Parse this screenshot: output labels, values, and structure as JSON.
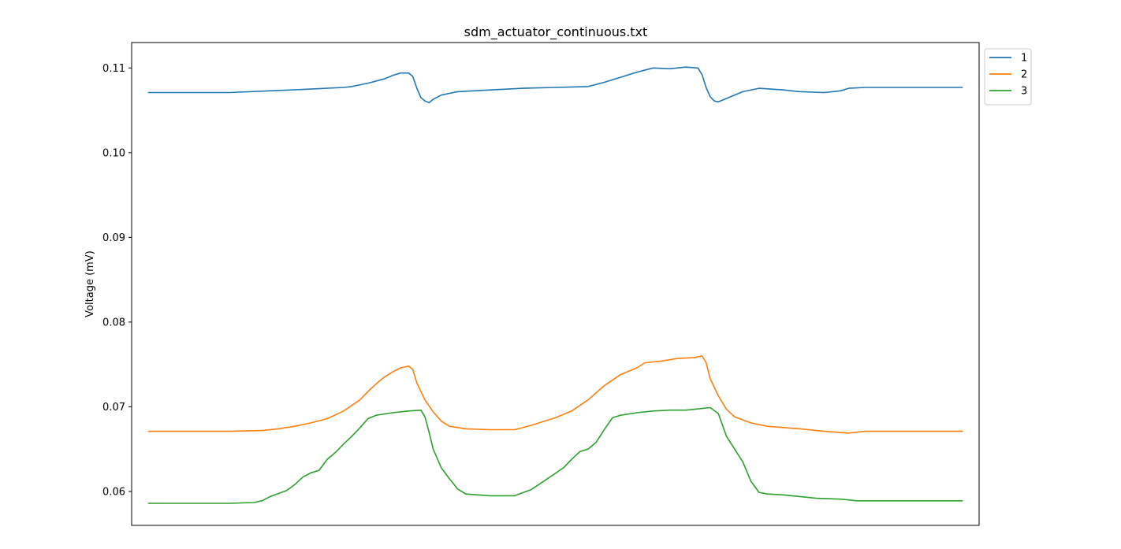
{
  "chart_data": {
    "type": "line",
    "title": "sdm_actuator_continuous.txt",
    "xlabel": "",
    "ylabel": "Voltage (mV)",
    "xlim": [
      -0.02,
      1.02
    ],
    "ylim": [
      0.056,
      0.113
    ],
    "yticks": [
      "0.06",
      "0.07",
      "0.08",
      "0.09",
      "0.10",
      "0.11"
    ],
    "grid": false,
    "legend": "upper right, outside plot",
    "series": [
      {
        "name": "1",
        "color": "#1f77b4",
        "points": [
          [
            0.0,
            0.1071
          ],
          [
            0.05,
            0.1071
          ],
          [
            0.1,
            0.1071
          ],
          [
            0.15,
            0.1073
          ],
          [
            0.2,
            0.1075
          ],
          [
            0.24,
            0.1077
          ],
          [
            0.25,
            0.1078
          ],
          [
            0.27,
            0.1082
          ],
          [
            0.29,
            0.1087
          ],
          [
            0.3,
            0.1091
          ],
          [
            0.31,
            0.1094
          ],
          [
            0.32,
            0.1094
          ],
          [
            0.325,
            0.109
          ],
          [
            0.33,
            0.1076
          ],
          [
            0.335,
            0.1065
          ],
          [
            0.34,
            0.1061
          ],
          [
            0.345,
            0.1059
          ],
          [
            0.35,
            0.1063
          ],
          [
            0.36,
            0.1068
          ],
          [
            0.38,
            0.1072
          ],
          [
            0.42,
            0.1074
          ],
          [
            0.46,
            0.1076
          ],
          [
            0.5,
            0.1077
          ],
          [
            0.54,
            0.1078
          ],
          [
            0.56,
            0.1083
          ],
          [
            0.58,
            0.1089
          ],
          [
            0.6,
            0.1095
          ],
          [
            0.62,
            0.11
          ],
          [
            0.64,
            0.1099
          ],
          [
            0.66,
            0.1101
          ],
          [
            0.675,
            0.11
          ],
          [
            0.68,
            0.1092
          ],
          [
            0.685,
            0.1077
          ],
          [
            0.69,
            0.1066
          ],
          [
            0.695,
            0.1061
          ],
          [
            0.7,
            0.106
          ],
          [
            0.71,
            0.1064
          ],
          [
            0.73,
            0.1072
          ],
          [
            0.75,
            0.1076
          ],
          [
            0.78,
            0.1074
          ],
          [
            0.8,
            0.1072
          ],
          [
            0.83,
            0.1071
          ],
          [
            0.85,
            0.1073
          ],
          [
            0.86,
            0.1076
          ],
          [
            0.88,
            0.1077
          ],
          [
            0.92,
            0.1077
          ],
          [
            0.96,
            0.1077
          ],
          [
            1.0,
            0.1077
          ]
        ]
      },
      {
        "name": "2",
        "color": "#ff7f0e",
        "points": [
          [
            0.0,
            0.0671
          ],
          [
            0.05,
            0.0671
          ],
          [
            0.1,
            0.0671
          ],
          [
            0.14,
            0.0672
          ],
          [
            0.16,
            0.0674
          ],
          [
            0.18,
            0.0677
          ],
          [
            0.2,
            0.0681
          ],
          [
            0.22,
            0.0686
          ],
          [
            0.24,
            0.0695
          ],
          [
            0.26,
            0.0708
          ],
          [
            0.27,
            0.0718
          ],
          [
            0.28,
            0.0727
          ],
          [
            0.29,
            0.0735
          ],
          [
            0.3,
            0.0741
          ],
          [
            0.31,
            0.0746
          ],
          [
            0.32,
            0.0748
          ],
          [
            0.325,
            0.0744
          ],
          [
            0.33,
            0.0728
          ],
          [
            0.34,
            0.0708
          ],
          [
            0.35,
            0.0694
          ],
          [
            0.36,
            0.0683
          ],
          [
            0.37,
            0.0677
          ],
          [
            0.39,
            0.0674
          ],
          [
            0.42,
            0.0673
          ],
          [
            0.45,
            0.0673
          ],
          [
            0.47,
            0.0678
          ],
          [
            0.5,
            0.0687
          ],
          [
            0.52,
            0.0695
          ],
          [
            0.54,
            0.0708
          ],
          [
            0.56,
            0.0725
          ],
          [
            0.58,
            0.0738
          ],
          [
            0.6,
            0.0746
          ],
          [
            0.61,
            0.0752
          ],
          [
            0.63,
            0.0754
          ],
          [
            0.65,
            0.0757
          ],
          [
            0.67,
            0.0758
          ],
          [
            0.68,
            0.076
          ],
          [
            0.685,
            0.0752
          ],
          [
            0.69,
            0.0733
          ],
          [
            0.7,
            0.0713
          ],
          [
            0.71,
            0.0697
          ],
          [
            0.72,
            0.0688
          ],
          [
            0.74,
            0.0681
          ],
          [
            0.76,
            0.0677
          ],
          [
            0.8,
            0.0674
          ],
          [
            0.83,
            0.0671
          ],
          [
            0.86,
            0.0669
          ],
          [
            0.88,
            0.0671
          ],
          [
            0.92,
            0.0671
          ],
          [
            1.0,
            0.0671
          ]
        ]
      },
      {
        "name": "3",
        "color": "#2ca02c",
        "points": [
          [
            0.0,
            0.0586
          ],
          [
            0.05,
            0.0586
          ],
          [
            0.1,
            0.0586
          ],
          [
            0.13,
            0.0587
          ],
          [
            0.14,
            0.0589
          ],
          [
            0.15,
            0.0594
          ],
          [
            0.17,
            0.0601
          ],
          [
            0.18,
            0.0608
          ],
          [
            0.19,
            0.0617
          ],
          [
            0.2,
            0.0622
          ],
          [
            0.21,
            0.0625
          ],
          [
            0.22,
            0.0638
          ],
          [
            0.23,
            0.0646
          ],
          [
            0.24,
            0.0656
          ],
          [
            0.25,
            0.0665
          ],
          [
            0.26,
            0.0675
          ],
          [
            0.27,
            0.0686
          ],
          [
            0.28,
            0.069
          ],
          [
            0.3,
            0.0693
          ],
          [
            0.32,
            0.0695
          ],
          [
            0.335,
            0.0696
          ],
          [
            0.34,
            0.0688
          ],
          [
            0.345,
            0.067
          ],
          [
            0.35,
            0.065
          ],
          [
            0.36,
            0.0628
          ],
          [
            0.37,
            0.0615
          ],
          [
            0.38,
            0.0603
          ],
          [
            0.39,
            0.0597
          ],
          [
            0.42,
            0.0595
          ],
          [
            0.45,
            0.0595
          ],
          [
            0.47,
            0.0602
          ],
          [
            0.49,
            0.0615
          ],
          [
            0.51,
            0.0628
          ],
          [
            0.52,
            0.0638
          ],
          [
            0.53,
            0.0647
          ],
          [
            0.54,
            0.065
          ],
          [
            0.55,
            0.0658
          ],
          [
            0.56,
            0.0673
          ],
          [
            0.57,
            0.0687
          ],
          [
            0.58,
            0.069
          ],
          [
            0.6,
            0.0693
          ],
          [
            0.62,
            0.0695
          ],
          [
            0.64,
            0.0696
          ],
          [
            0.66,
            0.0696
          ],
          [
            0.68,
            0.0698
          ],
          [
            0.69,
            0.0699
          ],
          [
            0.7,
            0.0692
          ],
          [
            0.71,
            0.0665
          ],
          [
            0.72,
            0.065
          ],
          [
            0.73,
            0.0635
          ],
          [
            0.74,
            0.0612
          ],
          [
            0.75,
            0.0599
          ],
          [
            0.76,
            0.0597
          ],
          [
            0.78,
            0.0596
          ],
          [
            0.8,
            0.0594
          ],
          [
            0.82,
            0.0592
          ],
          [
            0.85,
            0.0591
          ],
          [
            0.87,
            0.0589
          ],
          [
            0.9,
            0.0589
          ],
          [
            0.95,
            0.0589
          ],
          [
            1.0,
            0.0589
          ]
        ]
      }
    ]
  }
}
